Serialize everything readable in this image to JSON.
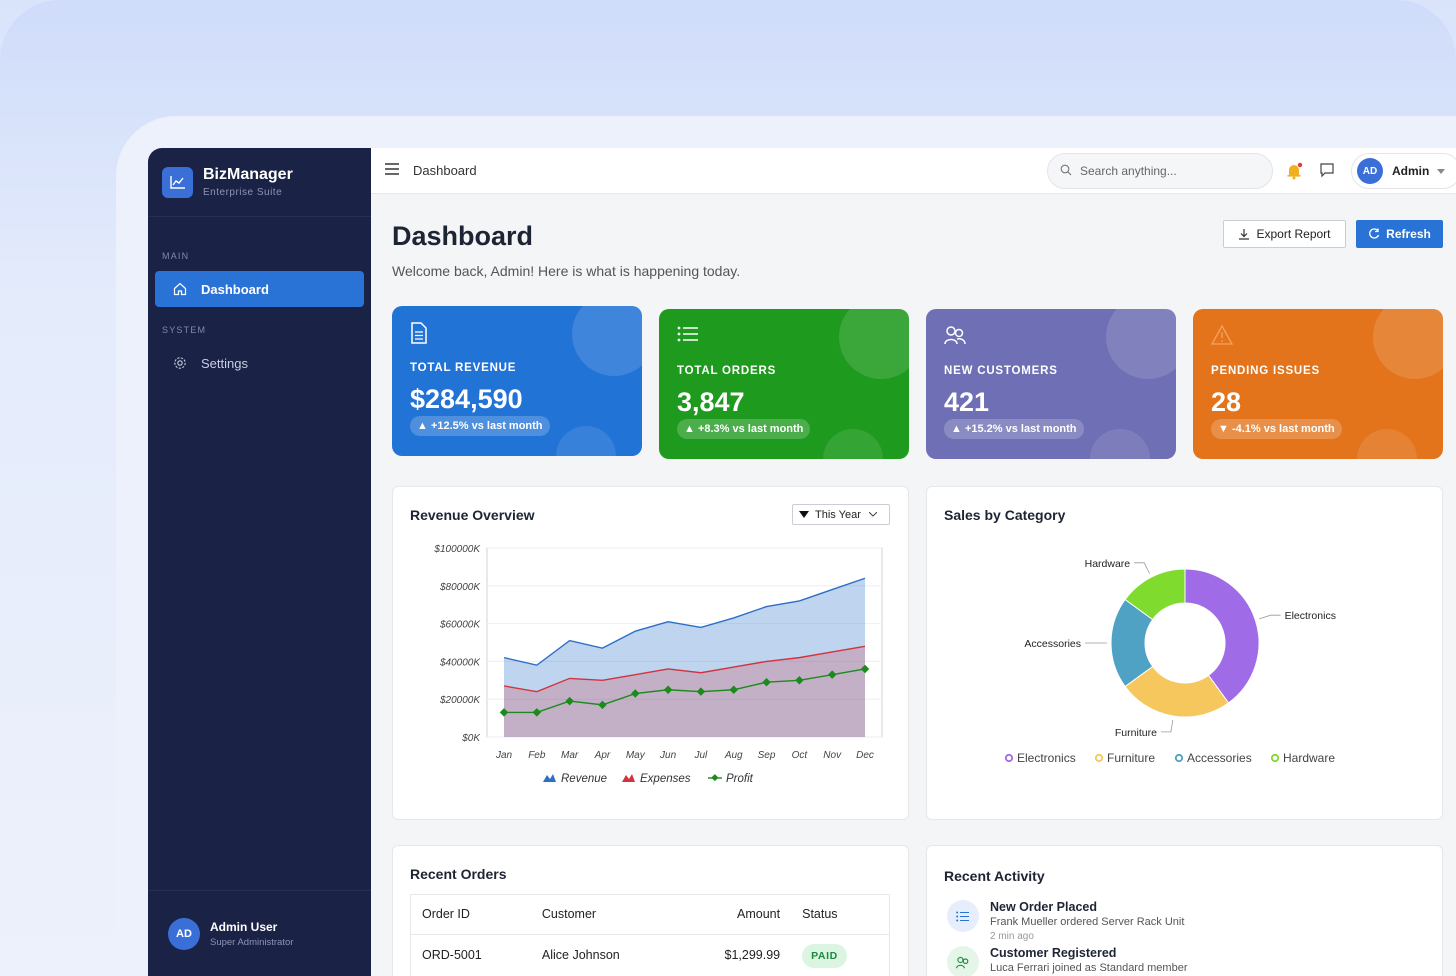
{
  "brand": {
    "name": "BizManager",
    "subtitle": "Enterprise Suite"
  },
  "sidebar": {
    "section_main": "MAIN",
    "section_system": "SYSTEM",
    "items": [
      {
        "label": "Dashboard",
        "icon": "home-icon"
      },
      {
        "label": "Settings",
        "icon": "gear-icon"
      }
    ]
  },
  "user": {
    "initials": "AD",
    "name": "Admin User",
    "role": "Super Administrator"
  },
  "topbar": {
    "breadcrumb": "Dashboard",
    "search_placeholder": "Search anything...",
    "admin_initials": "AD",
    "admin_name": "Admin"
  },
  "header": {
    "title": "Dashboard",
    "subtitle": "Welcome back, Admin! Here is what is happening today.",
    "export_label": "Export Report",
    "refresh_label": "Refresh"
  },
  "kpis": [
    {
      "label": "TOTAL REVENUE",
      "value": "$284,590",
      "change": "▲ +12.5% vs last month",
      "color": "#2273d6",
      "icon": "document-icon"
    },
    {
      "label": "TOTAL ORDERS",
      "value": "3,847",
      "change": "▲ +8.3% vs last month",
      "color": "#1e9a1e",
      "icon": "list-icon"
    },
    {
      "label": "NEW CUSTOMERS",
      "value": "421",
      "change": "▲ +15.2% vs last month",
      "color": "#6f6fb5",
      "icon": "users-icon"
    },
    {
      "label": "PENDING ISSUES",
      "value": "28",
      "change": "▼ -4.1% vs last month",
      "color": "#e3741c",
      "icon": "warning-icon"
    }
  ],
  "revenue_card": {
    "title": "Revenue Overview",
    "period": "This Year"
  },
  "category_card": {
    "title": "Sales by Category"
  },
  "chart_data": [
    {
      "type": "area",
      "title": "Revenue Overview",
      "categories": [
        "Jan",
        "Feb",
        "Mar",
        "Apr",
        "May",
        "Jun",
        "Jul",
        "Aug",
        "Sep",
        "Oct",
        "Nov",
        "Dec"
      ],
      "y_tick_labels": [
        "$100000K",
        "$80000K",
        "$60000K",
        "$40000K",
        "$20000K",
        "$0K"
      ],
      "ylim": [
        0,
        100000
      ],
      "grid": true,
      "legend": "bottom",
      "series": [
        {
          "name": "Revenue",
          "values": [
            42000,
            38000,
            51000,
            47000,
            56000,
            61000,
            58000,
            63000,
            69000,
            72000,
            78000,
            84000
          ],
          "color": "#2c6fc7"
        },
        {
          "name": "Expenses",
          "values": [
            27000,
            24000,
            31000,
            30000,
            33000,
            36000,
            34000,
            37000,
            40000,
            42000,
            45000,
            48000
          ],
          "color": "#d1333f"
        },
        {
          "name": "Profit",
          "values": [
            13000,
            13000,
            19000,
            17000,
            23000,
            25000,
            24000,
            25000,
            29000,
            30000,
            33000,
            36000
          ],
          "color": "#1c8a1c"
        }
      ]
    },
    {
      "type": "pie",
      "title": "Sales by Category",
      "legend": "bottom",
      "categories": [
        "Electronics",
        "Furniture",
        "Accessories",
        "Hardware"
      ],
      "values": [
        40,
        25,
        20,
        15
      ],
      "colors": [
        "#a06be6",
        "#f5c75c",
        "#4fa2c4",
        "#7fdb2d"
      ]
    }
  ],
  "orders": {
    "title": "Recent Orders",
    "columns": [
      "Order ID",
      "Customer",
      "Amount",
      "Status"
    ],
    "rows": [
      {
        "id": "ORD-5001",
        "customer": "Alice Johnson",
        "amount": "$1,299.99",
        "status": "PAID"
      }
    ]
  },
  "activity": {
    "title": "Recent Activity",
    "items": [
      {
        "title": "New Order Placed",
        "desc": "Frank Mueller ordered Server Rack Unit",
        "time": "2 min ago",
        "icon": "list-icon"
      },
      {
        "title": "Customer Registered",
        "desc": "Luca Ferrari joined as Standard member",
        "icon": "users-icon"
      }
    ]
  }
}
